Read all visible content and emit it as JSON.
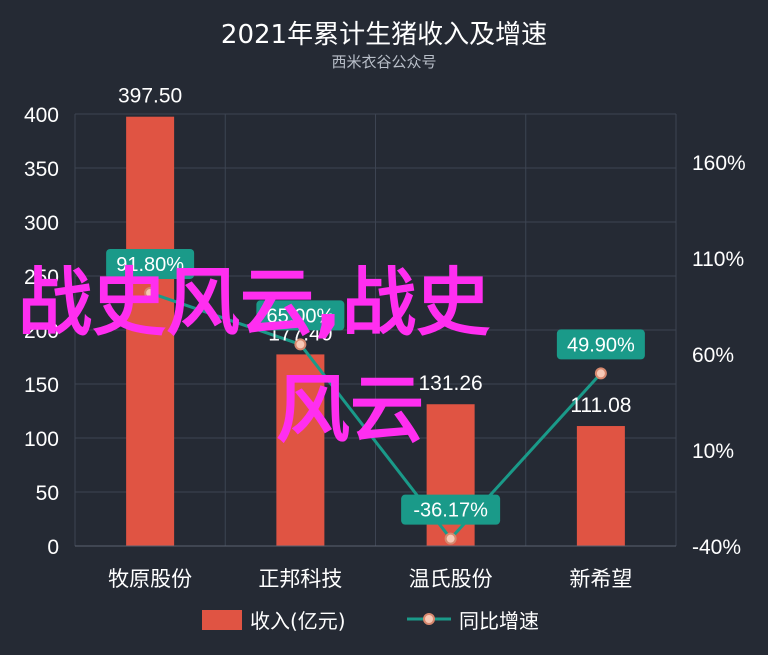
{
  "chart_data": {
    "type": "bar",
    "title": "2021年累计生猪收入及增速",
    "subtitle": "西米衣谷公众号",
    "categories": [
      "牧原股份",
      "正邦科技",
      "温氏股份",
      "新希望"
    ],
    "series": [
      {
        "name": "收入(亿元)",
        "type": "bar",
        "axis": "left",
        "values": [
          397.5,
          177.4,
          131.26,
          111.08
        ],
        "labels": [
          "397.50",
          "177.40",
          "131.26",
          "111.08"
        ],
        "color": "#e05443"
      },
      {
        "name": "同比增速",
        "type": "line",
        "axis": "right",
        "values": [
          91.8,
          65.0,
          -36.17,
          49.9
        ],
        "labels": [
          "91.80%",
          "65.00%",
          "-36.17%",
          "49.90%"
        ],
        "color": "#1a9a89"
      }
    ],
    "y_left": {
      "min": 0,
      "max": 400,
      "ticks": [
        "0",
        "50",
        "100",
        "150",
        "200",
        "250",
        "300",
        "350",
        "400"
      ]
    },
    "y_right": {
      "min": -40,
      "max": 185,
      "ticks": [
        "-40%",
        "10%",
        "60%",
        "110%",
        "160%"
      ],
      "tick_values": [
        -40,
        10,
        60,
        110,
        160
      ]
    },
    "grid": true,
    "legend_position": "bottom"
  },
  "watermark": {
    "line1": "战史风云,战史",
    "line2": "风云"
  },
  "colors": {
    "background": "#252a34",
    "grid": "#3d4452",
    "bar": "#e05443",
    "line": "#1a9a89",
    "point": "#f7c8b5"
  }
}
